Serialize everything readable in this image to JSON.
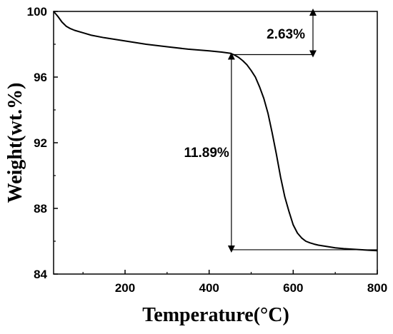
{
  "chart_data": {
    "type": "line",
    "title": "",
    "xlabel": "Temperature(°C)",
    "ylabel": "Weight(wt.%)",
    "xlim": [
      30,
      800
    ],
    "ylim": [
      84,
      100
    ],
    "x_ticks": [
      200,
      400,
      600,
      800
    ],
    "y_ticks": [
      84,
      88,
      92,
      96,
      100
    ],
    "grid": false,
    "legend": "none",
    "series": [
      {
        "color": "#000000",
        "x": [
          30,
          40,
          50,
          60,
          70,
          80,
          100,
          120,
          150,
          200,
          250,
          300,
          350,
          400,
          430,
          450,
          460,
          470,
          480,
          490,
          500,
          510,
          520,
          530,
          540,
          550,
          560,
          570,
          580,
          590,
          600,
          610,
          620,
          630,
          640,
          650,
          660,
          680,
          700,
          720,
          750,
          780,
          800
        ],
        "y": [
          100.0,
          99.7,
          99.35,
          99.1,
          98.95,
          98.85,
          98.7,
          98.55,
          98.4,
          98.2,
          98.0,
          97.85,
          97.7,
          97.6,
          97.52,
          97.45,
          97.35,
          97.2,
          97.0,
          96.75,
          96.4,
          96.0,
          95.4,
          94.7,
          93.8,
          92.6,
          91.3,
          89.9,
          88.7,
          87.8,
          87.0,
          86.5,
          86.2,
          86.0,
          85.9,
          85.82,
          85.76,
          85.68,
          85.6,
          85.55,
          85.5,
          85.45,
          85.42
        ]
      }
    ],
    "annotations": [
      {
        "text": "2.63%",
        "from_y": 100.0,
        "to_y": 97.37,
        "x": 647
      },
      {
        "text": "11.89%",
        "from_y": 97.37,
        "to_y": 85.48,
        "x": 453
      }
    ]
  }
}
